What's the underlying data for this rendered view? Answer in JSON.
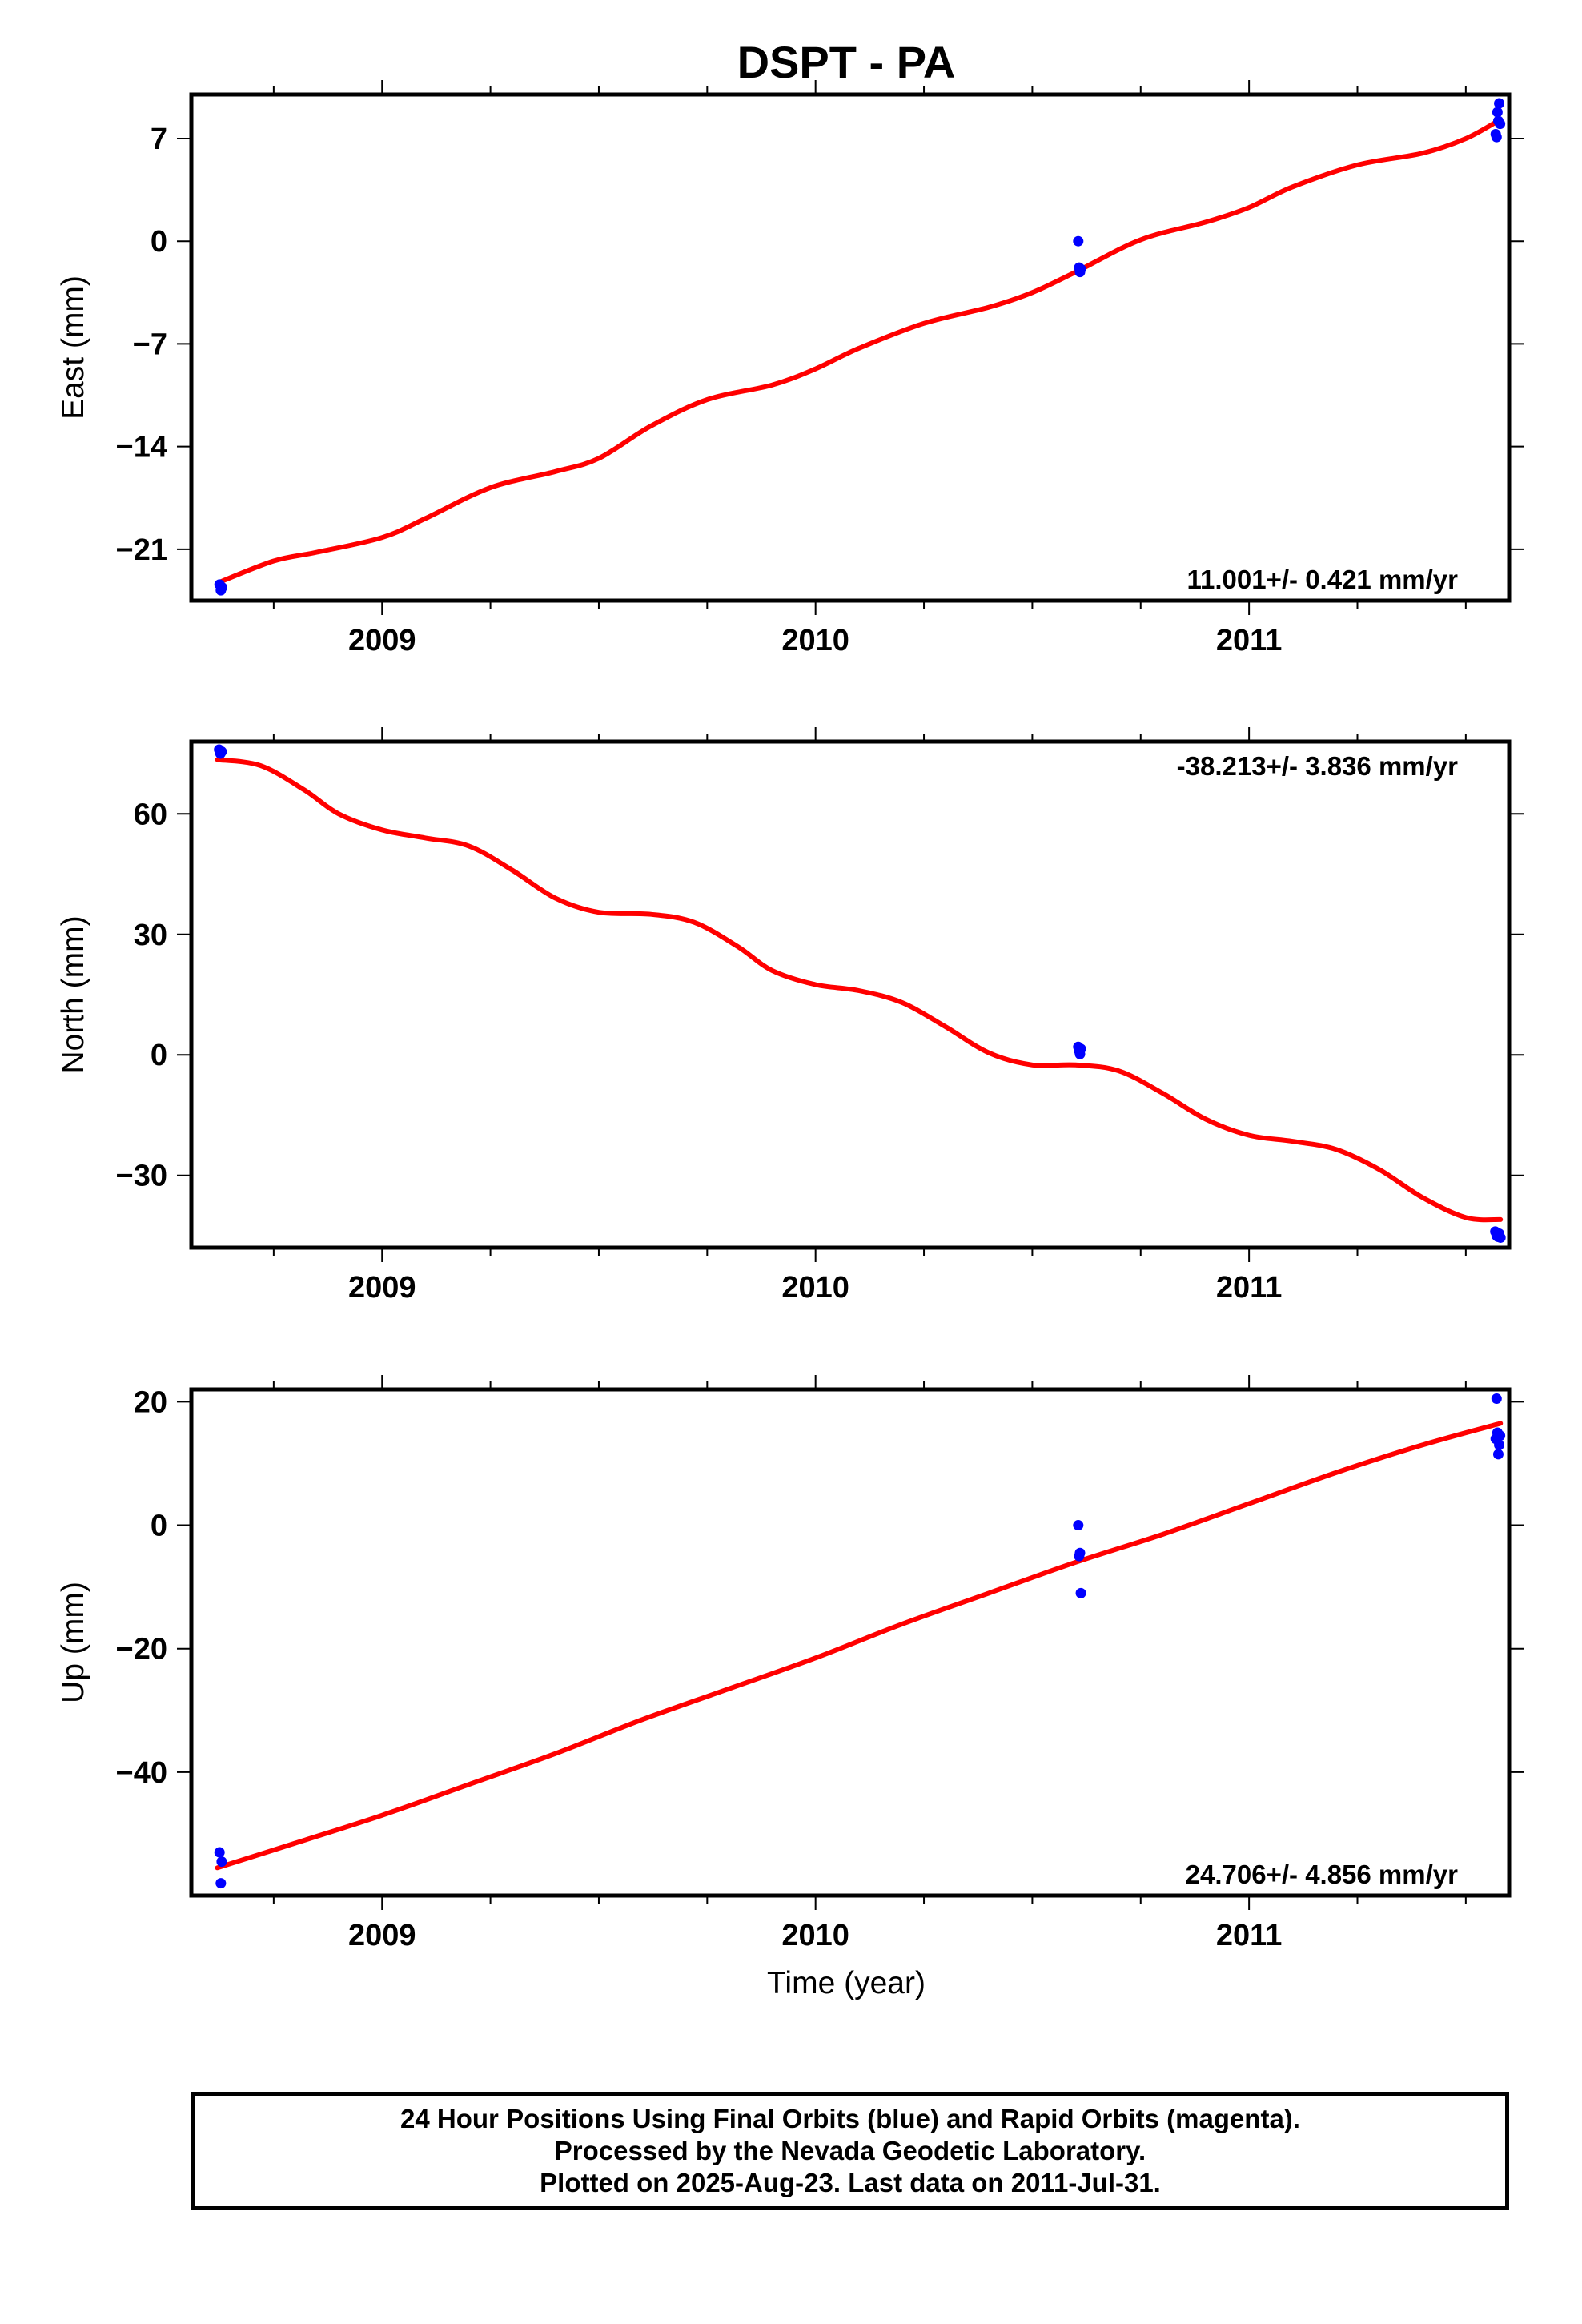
{
  "title": "DSPT - PA",
  "footer": {
    "line1": "24 Hour Positions Using Final Orbits (blue) and Rapid Orbits (magenta).",
    "line2": "Processed by the Nevada Geodetic Laboratory.",
    "line3": "Plotted on 2025-Aug-23. Last data on 2011-Jul-31."
  },
  "xlabel": "Time (year)",
  "colors": {
    "data": "#0000ff",
    "fit": "#ff0000",
    "frame": "#000000"
  },
  "chart_data": [
    {
      "type": "scatter",
      "panel": "east",
      "ylabel": "East (mm)",
      "xlim": [
        2008.56,
        2011.6
      ],
      "ylim": [
        -24.5,
        10.0
      ],
      "xticks": [
        2009,
        2010,
        2011
      ],
      "yticks": [
        -21,
        -14,
        -7,
        0,
        7
      ],
      "ytick_labels": [
        "−21",
        "−14",
        "−7",
        "0",
        "7"
      ],
      "rate_text": "11.001+/- 0.421 mm/yr",
      "rate_position": "bottom-right",
      "points": {
        "x": [
          2008.625,
          2008.628,
          2008.631,
          2010.606,
          2010.608,
          2010.61,
          2010.612,
          2011.569,
          2011.571,
          2011.573,
          2011.575,
          2011.577,
          2011.579
        ],
        "y": [
          -23.4,
          -23.8,
          -23.6,
          0.0,
          -1.8,
          -2.1,
          -1.9,
          7.3,
          7.1,
          8.8,
          8.2,
          9.4,
          8.0
        ]
      },
      "fit": {
        "x": [
          2008.62,
          2008.75,
          2008.85,
          2009.0,
          2009.1,
          2009.25,
          2009.4,
          2009.5,
          2009.62,
          2009.75,
          2009.9,
          2010.0,
          2010.1,
          2010.25,
          2010.4,
          2010.5,
          2010.6,
          2010.75,
          2010.9,
          2011.0,
          2011.1,
          2011.25,
          2011.4,
          2011.5,
          2011.58
        ],
        "y": [
          -23.3,
          -21.8,
          -21.2,
          -20.2,
          -18.9,
          -16.8,
          -15.7,
          -14.8,
          -12.6,
          -10.8,
          -9.8,
          -8.7,
          -7.3,
          -5.6,
          -4.5,
          -3.5,
          -2.1,
          0.1,
          1.3,
          2.3,
          3.7,
          5.2,
          6.0,
          7.0,
          8.3
        ]
      }
    },
    {
      "type": "scatter",
      "panel": "north",
      "ylabel": "North (mm)",
      "xlim": [
        2008.56,
        2011.6
      ],
      "ylim": [
        -48.0,
        78.0
      ],
      "xticks": [
        2009,
        2010,
        2011
      ],
      "yticks": [
        -30,
        0,
        30,
        60
      ],
      "ytick_labels": [
        "−30",
        "0",
        "30",
        "60"
      ],
      "rate_text": "-38.213+/- 3.836 mm/yr",
      "rate_position": "top-right",
      "points": {
        "x": [
          2008.624,
          2008.627,
          2008.63,
          2010.606,
          2010.608,
          2010.61,
          2010.612,
          2011.568,
          2011.571,
          2011.574,
          2011.577,
          2011.58
        ],
        "y": [
          76.0,
          75.0,
          75.5,
          2.0,
          1.0,
          0.2,
          1.5,
          -44.0,
          -45.0,
          -45.3,
          -44.5,
          -45.5
        ]
      },
      "fit": {
        "x": [
          2008.62,
          2008.72,
          2008.82,
          2008.9,
          2009.0,
          2009.1,
          2009.2,
          2009.3,
          2009.4,
          2009.5,
          2009.62,
          2009.72,
          2009.82,
          2009.9,
          2010.0,
          2010.1,
          2010.2,
          2010.3,
          2010.4,
          2010.5,
          2010.6,
          2010.7,
          2010.8,
          2010.9,
          2011.0,
          2011.1,
          2011.2,
          2011.3,
          2011.4,
          2011.5,
          2011.58
        ],
        "y": [
          73.5,
          72.0,
          66.0,
          60.0,
          56.0,
          54.0,
          52.0,
          46.0,
          39.0,
          35.5,
          35.0,
          33.0,
          27.0,
          21.0,
          17.5,
          16.0,
          13.0,
          7.0,
          0.5,
          -2.5,
          -2.5,
          -4.0,
          -9.5,
          -16.0,
          -20.0,
          -21.5,
          -23.5,
          -28.5,
          -35.5,
          -40.5,
          -41.0
        ]
      }
    },
    {
      "type": "scatter",
      "panel": "up",
      "ylabel": "Up (mm)",
      "xlim": [
        2008.56,
        2011.6
      ],
      "ylim": [
        -60.0,
        22.0
      ],
      "xticks": [
        2009,
        2010,
        2011
      ],
      "yticks": [
        -40,
        -20,
        0,
        20
      ],
      "ytick_labels": [
        "−40",
        "−20",
        "0",
        "20"
      ],
      "rate_text": "24.706+/- 4.856 mm/yr",
      "rate_position": "bottom-right",
      "points": {
        "x": [
          2008.625,
          2008.628,
          2008.63,
          2010.606,
          2010.608,
          2010.61,
          2010.612,
          2011.569,
          2011.571,
          2011.573,
          2011.575,
          2011.577,
          2011.579
        ],
        "y": [
          -53.0,
          -58.0,
          -54.5,
          0.0,
          -5.0,
          -4.5,
          -11.0,
          14.0,
          20.5,
          15.0,
          11.5,
          13.0,
          14.5
        ]
      },
      "fit": {
        "x": [
          2008.62,
          2008.8,
          2009.0,
          2009.2,
          2009.4,
          2009.6,
          2009.8,
          2010.0,
          2010.2,
          2010.4,
          2010.6,
          2010.8,
          2011.0,
          2011.2,
          2011.4,
          2011.58
        ],
        "y": [
          -55.5,
          -51.5,
          -47.0,
          -42.0,
          -37.0,
          -31.5,
          -26.5,
          -21.5,
          -16.0,
          -11.0,
          -6.0,
          -1.5,
          3.5,
          8.5,
          13.0,
          16.5
        ]
      }
    }
  ]
}
